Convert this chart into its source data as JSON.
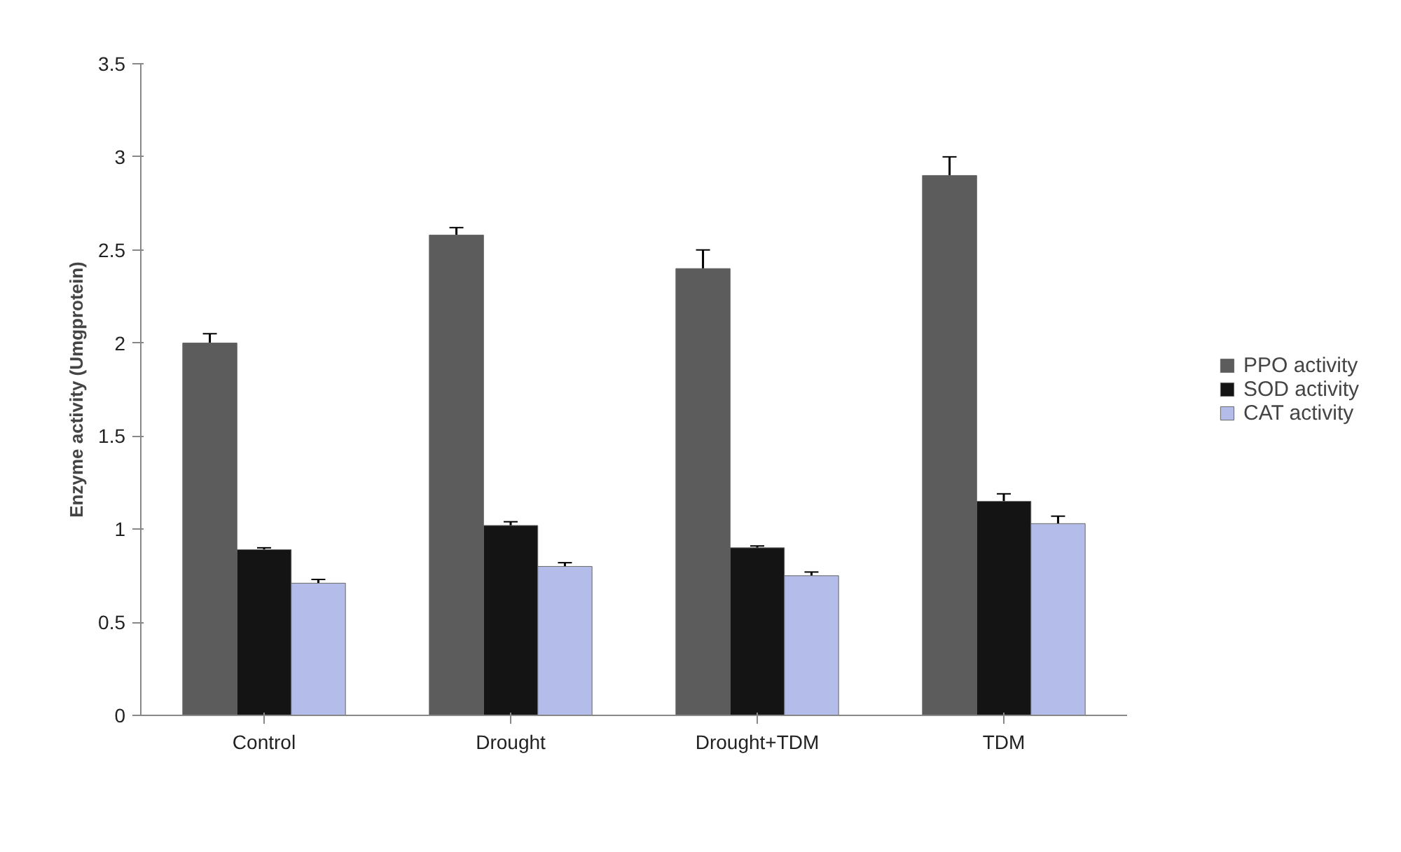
{
  "chart_data": {
    "type": "bar",
    "ylabel": "Enzyme activity (Umgprotein)",
    "categories": [
      "Control",
      "Drought",
      "Drought+TDM",
      "TDM"
    ],
    "series": [
      {
        "name": "PPO activity",
        "color": "#5c5c5c",
        "values": [
          2.0,
          2.58,
          2.4,
          2.9
        ],
        "errors": [
          0.05,
          0.04,
          0.1,
          0.1
        ]
      },
      {
        "name": "SOD activity",
        "color": "#141414",
        "values": [
          0.89,
          1.02,
          0.9,
          1.15
        ],
        "errors": [
          0.01,
          0.02,
          0.01,
          0.04
        ]
      },
      {
        "name": "CAT activity",
        "color": "#b4bcea",
        "values": [
          0.71,
          0.8,
          0.75,
          1.03
        ],
        "errors": [
          0.02,
          0.02,
          0.02,
          0.04
        ]
      }
    ],
    "ylim": [
      0,
      3.5
    ],
    "yticks": [
      0,
      0.5,
      1,
      1.5,
      2,
      2.5,
      3,
      3.5
    ],
    "grid": false,
    "legend": "right"
  }
}
